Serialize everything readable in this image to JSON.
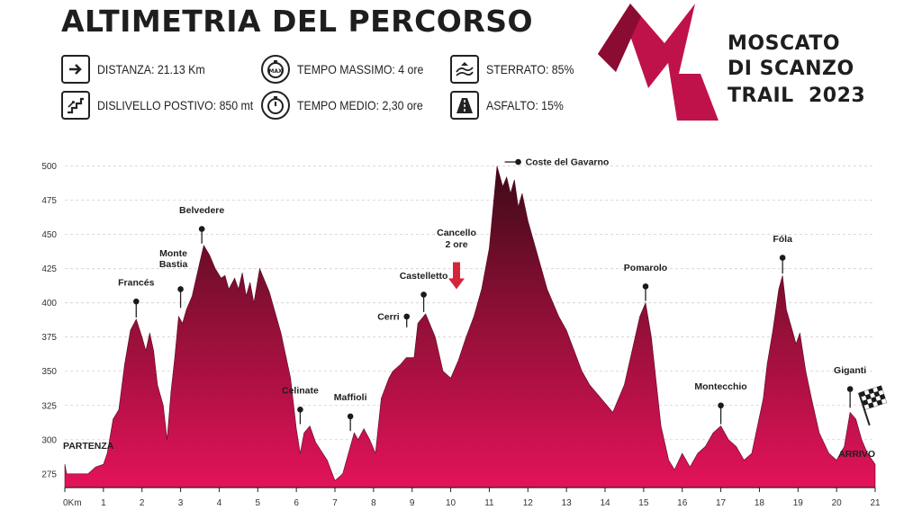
{
  "header": {
    "title": "ALTIMETRIA DEL PERCORSO"
  },
  "stats": [
    {
      "icon": "arrow-right-icon",
      "label": "DISTANZA: 21.13 Km"
    },
    {
      "icon": "stopwatch-max-icon",
      "label": "TEMPO MASSIMO: 4 ore"
    },
    {
      "icon": "dirt-road-icon",
      "label": "STERRATO: 85%"
    },
    {
      "icon": "stairs-icon",
      "label": "DISLIVELLO POSTIVO: 850 mt"
    },
    {
      "icon": "stopwatch-icon",
      "label": "TEMPO MEDIO: 2,30 ore"
    },
    {
      "icon": "paved-road-icon",
      "label": "ASFALTO: 15%"
    }
  ],
  "logo": {
    "line1": "MOSCATO",
    "line2": "DI SCANZO",
    "line3": "TRAIL",
    "year": "2023",
    "color": "#b5123f"
  },
  "chart_data": {
    "type": "area",
    "colors": {
      "top": "#3d0a18",
      "bottom": "#e3135a"
    },
    "xlim": [
      0,
      21
    ],
    "ylim": [
      265,
      505
    ],
    "grid": "horizontal-dashed",
    "x_ticks": [
      "0Km",
      "1",
      "2",
      "3",
      "4",
      "5",
      "6",
      "7",
      "8",
      "9",
      "10",
      "11",
      "12",
      "13",
      "14",
      "15",
      "16",
      "17",
      "18",
      "19",
      "20",
      "21"
    ],
    "y_ticks": [
      275,
      300,
      325,
      350,
      375,
      400,
      425,
      450,
      475,
      500
    ],
    "points": [
      [
        0,
        282
      ],
      [
        0.05,
        275
      ],
      [
        0.6,
        275
      ],
      [
        0.8,
        280
      ],
      [
        1.0,
        282
      ],
      [
        1.1,
        290
      ],
      [
        1.25,
        315
      ],
      [
        1.4,
        322
      ],
      [
        1.55,
        355
      ],
      [
        1.7,
        380
      ],
      [
        1.85,
        388
      ],
      [
        2.0,
        375
      ],
      [
        2.1,
        365
      ],
      [
        2.2,
        378
      ],
      [
        2.3,
        365
      ],
      [
        2.4,
        340
      ],
      [
        2.55,
        325
      ],
      [
        2.65,
        300
      ],
      [
        2.75,
        335
      ],
      [
        2.85,
        360
      ],
      [
        2.95,
        390
      ],
      [
        3.05,
        385
      ],
      [
        3.15,
        395
      ],
      [
        3.3,
        405
      ],
      [
        3.5,
        430
      ],
      [
        3.6,
        442
      ],
      [
        3.75,
        435
      ],
      [
        3.9,
        425
      ],
      [
        4.05,
        418
      ],
      [
        4.15,
        420
      ],
      [
        4.25,
        410
      ],
      [
        4.4,
        418
      ],
      [
        4.5,
        410
      ],
      [
        4.6,
        422
      ],
      [
        4.7,
        405
      ],
      [
        4.8,
        415
      ],
      [
        4.9,
        400
      ],
      [
        5.05,
        425
      ],
      [
        5.3,
        408
      ],
      [
        5.6,
        378
      ],
      [
        5.85,
        345
      ],
      [
        6.0,
        308
      ],
      [
        6.1,
        290
      ],
      [
        6.2,
        305
      ],
      [
        6.35,
        310
      ],
      [
        6.5,
        298
      ],
      [
        6.8,
        285
      ],
      [
        7.0,
        270
      ],
      [
        7.2,
        275
      ],
      [
        7.35,
        290
      ],
      [
        7.5,
        305
      ],
      [
        7.6,
        300
      ],
      [
        7.75,
        308
      ],
      [
        7.9,
        300
      ],
      [
        8.05,
        290
      ],
      [
        8.2,
        330
      ],
      [
        8.4,
        345
      ],
      [
        8.5,
        350
      ],
      [
        8.7,
        355
      ],
      [
        8.85,
        360
      ],
      [
        9.0,
        360
      ],
      [
        9.05,
        360
      ],
      [
        9.15,
        385
      ],
      [
        9.35,
        392
      ],
      [
        9.6,
        375
      ],
      [
        9.8,
        350
      ],
      [
        10.0,
        345
      ],
      [
        10.2,
        358
      ],
      [
        10.4,
        375
      ],
      [
        10.6,
        390
      ],
      [
        10.8,
        410
      ],
      [
        11.0,
        440
      ],
      [
        11.1,
        470
      ],
      [
        11.2,
        500
      ],
      [
        11.35,
        485
      ],
      [
        11.45,
        492
      ],
      [
        11.55,
        480
      ],
      [
        11.65,
        490
      ],
      [
        11.75,
        470
      ],
      [
        11.85,
        480
      ],
      [
        12.0,
        460
      ],
      [
        12.2,
        440
      ],
      [
        12.5,
        410
      ],
      [
        12.8,
        390
      ],
      [
        13.0,
        380
      ],
      [
        13.2,
        365
      ],
      [
        13.4,
        350
      ],
      [
        13.6,
        340
      ],
      [
        13.9,
        330
      ],
      [
        14.2,
        320
      ],
      [
        14.5,
        340
      ],
      [
        14.7,
        365
      ],
      [
        14.9,
        390
      ],
      [
        15.05,
        400
      ],
      [
        15.2,
        375
      ],
      [
        15.45,
        310
      ],
      [
        15.65,
        285
      ],
      [
        15.8,
        278
      ],
      [
        16.0,
        290
      ],
      [
        16.2,
        280
      ],
      [
        16.4,
        290
      ],
      [
        16.6,
        295
      ],
      [
        16.8,
        305
      ],
      [
        17.0,
        310
      ],
      [
        17.2,
        300
      ],
      [
        17.4,
        295
      ],
      [
        17.6,
        285
      ],
      [
        17.8,
        290
      ],
      [
        17.95,
        310
      ],
      [
        18.1,
        330
      ],
      [
        18.2,
        355
      ],
      [
        18.35,
        380
      ],
      [
        18.5,
        410
      ],
      [
        18.6,
        420
      ],
      [
        18.7,
        395
      ],
      [
        18.85,
        380
      ],
      [
        18.95,
        370
      ],
      [
        19.05,
        378
      ],
      [
        19.2,
        350
      ],
      [
        19.35,
        330
      ],
      [
        19.55,
        305
      ],
      [
        19.8,
        290
      ],
      [
        20.0,
        285
      ],
      [
        20.2,
        295
      ],
      [
        20.35,
        320
      ],
      [
        20.5,
        315
      ],
      [
        20.65,
        300
      ],
      [
        20.8,
        290
      ],
      [
        21.0,
        282
      ]
    ],
    "peaks": [
      {
        "name": "Francés",
        "x": 1.85,
        "y": 388,
        "pin": 401,
        "label_y": 410
      },
      {
        "name": "Monte",
        "name2": "Bastia",
        "x": 3.0,
        "y": 395,
        "pin": 410,
        "label_y": 430
      },
      {
        "name": "Belvedere",
        "x": 3.55,
        "y": 442,
        "pin": 454,
        "label_y": 463
      },
      {
        "name": "Celinate",
        "x": 6.1,
        "y": 310,
        "pin": 322,
        "label_y": 331
      },
      {
        "name": "Maffioli",
        "x": 7.4,
        "y": 305,
        "pin": 317,
        "label_y": 326
      },
      {
        "name": "Cerri",
        "x": 9.0,
        "y": 362,
        "pin": 390,
        "label_y": 390
      },
      {
        "name": "Castelletto",
        "x": 9.3,
        "y": 392,
        "pin": 406,
        "label_y": 415
      },
      {
        "name": "Coste del Gavarno",
        "x": 11.75,
        "y": 500,
        "pin": 503,
        "label_y": 503
      },
      {
        "name": "Pomarolo",
        "x": 15.05,
        "y": 400,
        "pin": 412,
        "label_y": 421
      },
      {
        "name": "Montecchio",
        "x": 17.0,
        "y": 310,
        "pin": 325,
        "label_y": 334
      },
      {
        "name": "Fóla",
        "x": 18.6,
        "y": 420,
        "pin": 433,
        "label_y": 442
      },
      {
        "name": "Giganti",
        "x": 20.35,
        "y": 322,
        "pin": 337,
        "label_y": 346
      }
    ],
    "annotations": [
      {
        "text": "Cancello",
        "text2": "2 ore",
        "x": 10.15,
        "y": 449,
        "arrow_y": 410
      }
    ],
    "start_label": "PARTENZA",
    "end_label": "ARRIVO"
  }
}
